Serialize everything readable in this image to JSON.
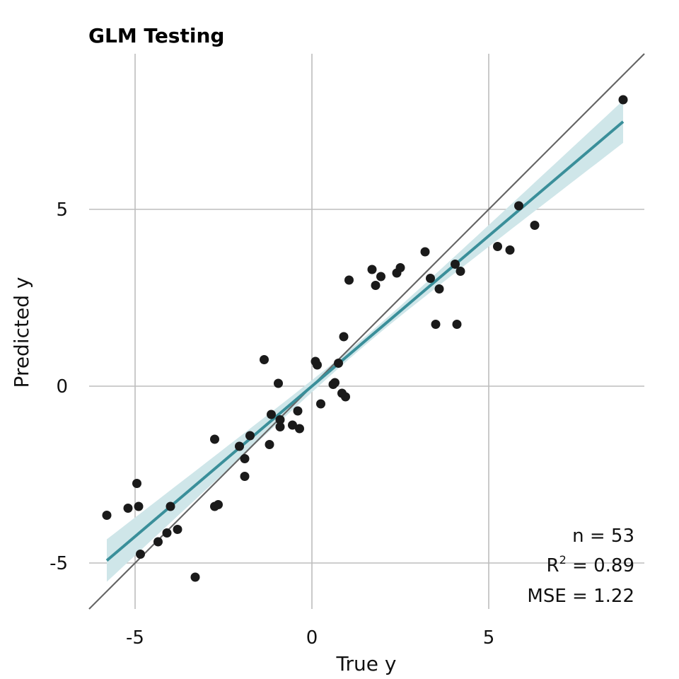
{
  "chart_data": {
    "type": "scatter",
    "title": "GLM Testing",
    "xlabel": "True y",
    "ylabel": "Predicted y",
    "xlim": [
      -6.3,
      9.4
    ],
    "ylim": [
      -6.3,
      9.4
    ],
    "x_ticks": [
      -5,
      0,
      5
    ],
    "y_ticks": [
      -5,
      0,
      5
    ],
    "grid": true,
    "reference_line": {
      "slope": 1,
      "intercept": 0,
      "color": "#666666"
    },
    "fit": {
      "x_range": [
        -5.8,
        8.8
      ],
      "slope": 0.85,
      "intercept": 0.0,
      "ci_halfwidth_at_ends": 0.6,
      "ci_halfwidth_at_center": 0.12,
      "color": "#3a8f9a",
      "ci_color": "#cfe6e9"
    },
    "point_color": "#1a1a1a",
    "points": [
      [
        -5.8,
        -3.65
      ],
      [
        -5.2,
        -3.45
      ],
      [
        -4.95,
        -2.75
      ],
      [
        -4.9,
        -3.4
      ],
      [
        -4.85,
        -4.75
      ],
      [
        -4.35,
        -4.4
      ],
      [
        -4.1,
        -4.15
      ],
      [
        -4.0,
        -3.4
      ],
      [
        -3.8,
        -4.05
      ],
      [
        -3.3,
        -5.4
      ],
      [
        -2.75,
        -1.5
      ],
      [
        -2.75,
        -3.4
      ],
      [
        -2.65,
        -3.35
      ],
      [
        -2.05,
        -1.7
      ],
      [
        -1.9,
        -2.05
      ],
      [
        -1.9,
        -2.55
      ],
      [
        -1.75,
        -1.4
      ],
      [
        -1.35,
        0.75
      ],
      [
        -1.2,
        -1.65
      ],
      [
        -1.15,
        -0.8
      ],
      [
        -0.95,
        0.08
      ],
      [
        -0.9,
        -1.15
      ],
      [
        -0.9,
        -0.95
      ],
      [
        -0.55,
        -1.1
      ],
      [
        -0.4,
        -0.7
      ],
      [
        -0.35,
        -1.2
      ],
      [
        0.1,
        0.7
      ],
      [
        0.15,
        0.6
      ],
      [
        0.25,
        -0.5
      ],
      [
        0.6,
        0.05
      ],
      [
        0.65,
        0.1
      ],
      [
        0.75,
        0.65
      ],
      [
        0.85,
        -0.2
      ],
      [
        0.9,
        1.4
      ],
      [
        0.95,
        -0.3
      ],
      [
        1.05,
        3.0
      ],
      [
        1.7,
        3.3
      ],
      [
        1.8,
        2.85
      ],
      [
        1.95,
        3.1
      ],
      [
        2.4,
        3.2
      ],
      [
        2.5,
        3.35
      ],
      [
        3.2,
        3.8
      ],
      [
        3.35,
        3.05
      ],
      [
        3.5,
        1.75
      ],
      [
        3.6,
        2.75
      ],
      [
        4.05,
        3.45
      ],
      [
        4.1,
        1.75
      ],
      [
        4.2,
        3.25
      ],
      [
        5.25,
        3.95
      ],
      [
        5.6,
        3.85
      ],
      [
        5.85,
        5.1
      ],
      [
        6.3,
        4.55
      ],
      [
        8.8,
        8.1
      ]
    ],
    "stats": {
      "n": "n = 53",
      "r2_prefix": "R",
      "r2_sup": "2",
      "r2_value": " = 0.89",
      "mse": "MSE = 1.22"
    }
  }
}
